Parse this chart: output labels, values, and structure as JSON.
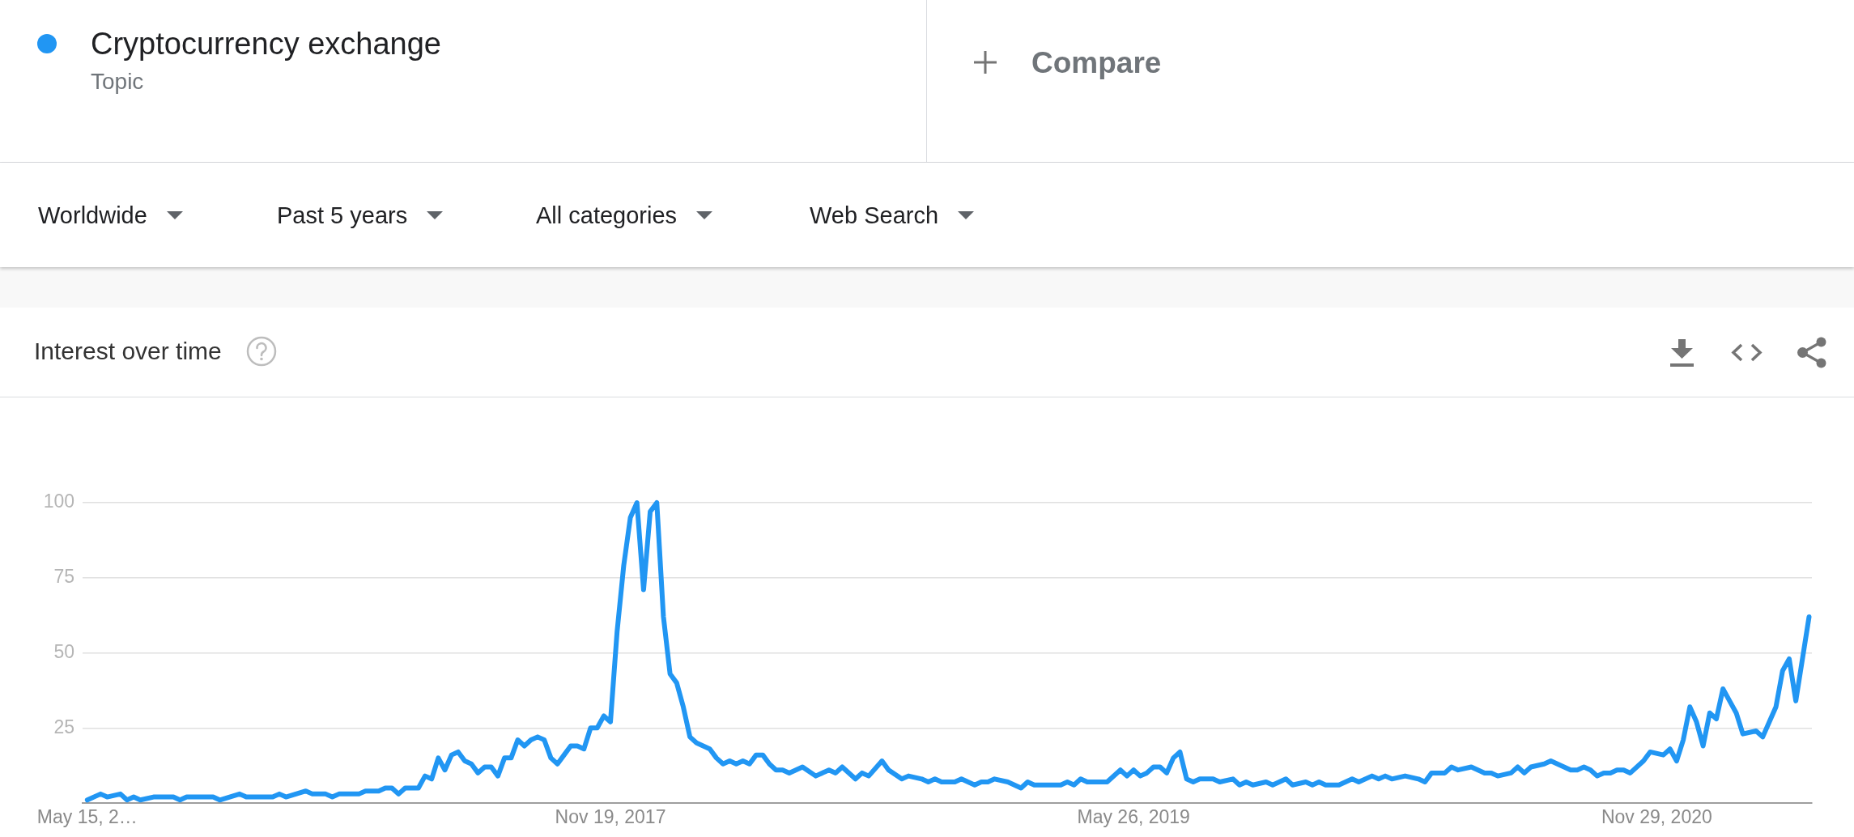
{
  "chart_data": {
    "type": "line",
    "title": "Interest over time",
    "legend": "top left",
    "annotations": [
      "Topic",
      "Compare",
      "Worldwide",
      "Past 5 years",
      "All categories",
      "Web Search"
    ],
    "xlim": [
      "2016-05-10",
      "2021-05-12"
    ],
    "xticks": [
      {
        "value": "2016-05-15",
        "label": "May 15, 2…"
      },
      {
        "value": "2017-11-19",
        "label": "Nov 19, 2017"
      },
      {
        "value": "2019-05-26",
        "label": "May 26, 2019"
      },
      {
        "value": "2020-11-29",
        "label": "Nov 29, 2020"
      }
    ],
    "ylim": [
      0,
      100
    ],
    "yticks": [
      {
        "value": 0,
        "label": null
      },
      25,
      50,
      75,
      100
    ],
    "grid": "y",
    "series": [
      {
        "name": "Cryptocurrency exchange",
        "color": "#2196f3",
        "x": [
          "2016-05-15",
          "2016-05-29",
          "2016-06-05",
          "2016-06-19",
          "2016-06-26",
          "2016-07-03",
          "2016-07-10",
          "2016-07-24",
          "2016-08-14",
          "2016-08-21",
          "2016-08-28",
          "2016-09-25",
          "2016-10-02",
          "2016-10-23",
          "2016-10-30",
          "2016-11-27",
          "2016-12-04",
          "2016-12-11",
          "2017-01-01",
          "2017-01-08",
          "2017-01-22",
          "2017-01-29",
          "2017-02-05",
          "2017-02-26",
          "2017-03-05",
          "2017-03-19",
          "2017-03-26",
          "2017-04-02",
          "2017-04-09",
          "2017-04-16",
          "2017-04-30",
          "2017-05-07",
          "2017-05-14",
          "2017-05-21",
          "2017-05-28",
          "2017-06-04",
          "2017-06-11",
          "2017-06-18",
          "2017-06-25",
          "2017-07-02",
          "2017-07-09",
          "2017-07-16",
          "2017-07-23",
          "2017-07-30",
          "2017-08-06",
          "2017-08-13",
          "2017-08-20",
          "2017-08-27",
          "2017-09-03",
          "2017-09-10",
          "2017-09-17",
          "2017-09-24",
          "2017-10-01",
          "2017-10-08",
          "2017-10-15",
          "2017-10-22",
          "2017-10-29",
          "2017-11-05",
          "2017-11-12",
          "2017-11-19",
          "2017-11-26",
          "2017-12-03",
          "2017-12-10",
          "2017-12-17",
          "2017-12-24",
          "2017-12-31",
          "2018-01-07",
          "2018-01-14",
          "2018-01-21",
          "2018-01-28",
          "2018-02-04",
          "2018-02-11",
          "2018-02-18",
          "2018-03-04",
          "2018-03-11",
          "2018-03-18",
          "2018-03-25",
          "2018-04-01",
          "2018-04-08",
          "2018-04-15",
          "2018-04-22",
          "2018-04-29",
          "2018-05-06",
          "2018-05-13",
          "2018-05-20",
          "2018-05-27",
          "2018-06-10",
          "2018-06-24",
          "2018-07-08",
          "2018-07-15",
          "2018-07-22",
          "2018-08-05",
          "2018-08-12",
          "2018-08-19",
          "2018-09-02",
          "2018-09-09",
          "2018-09-23",
          "2018-09-30",
          "2018-10-14",
          "2018-10-21",
          "2018-10-28",
          "2018-11-04",
          "2018-11-18",
          "2018-11-25",
          "2018-12-09",
          "2018-12-16",
          "2018-12-23",
          "2018-12-30",
          "2019-01-13",
          "2019-01-27",
          "2019-02-03",
          "2019-02-10",
          "2019-03-10",
          "2019-03-17",
          "2019-03-24",
          "2019-03-31",
          "2019-04-07",
          "2019-04-28",
          "2019-05-12",
          "2019-05-19",
          "2019-05-26",
          "2019-06-02",
          "2019-06-09",
          "2019-06-16",
          "2019-06-23",
          "2019-06-30",
          "2019-07-07",
          "2019-07-14",
          "2019-07-21",
          "2019-07-28",
          "2019-08-04",
          "2019-08-18",
          "2019-08-25",
          "2019-09-08",
          "2019-09-15",
          "2019-09-22",
          "2019-09-29",
          "2019-10-13",
          "2019-10-20",
          "2019-11-03",
          "2019-11-10",
          "2019-11-24",
          "2019-12-01",
          "2019-12-08",
          "2019-12-15",
          "2019-12-29",
          "2020-01-12",
          "2020-01-19",
          "2020-02-02",
          "2020-02-09",
          "2020-02-16",
          "2020-02-23",
          "2020-03-08",
          "2020-03-22",
          "2020-03-29",
          "2020-04-05",
          "2020-04-19",
          "2020-04-26",
          "2020-05-03",
          "2020-05-17",
          "2020-05-31",
          "2020-06-07",
          "2020-06-14",
          "2020-06-28",
          "2020-07-05",
          "2020-07-12",
          "2020-07-19",
          "2020-08-02",
          "2020-08-09",
          "2020-08-16",
          "2020-08-30",
          "2020-09-06",
          "2020-09-13",
          "2020-09-20",
          "2020-09-27",
          "2020-10-04",
          "2020-10-11",
          "2020-10-18",
          "2020-10-25",
          "2020-11-01",
          "2020-11-15",
          "2020-11-22",
          "2020-12-06",
          "2020-12-13",
          "2020-12-20",
          "2020-12-27",
          "2021-01-03",
          "2021-01-10",
          "2021-01-17",
          "2021-01-24",
          "2021-01-31",
          "2021-02-07",
          "2021-02-14",
          "2021-02-21",
          "2021-02-28",
          "2021-03-14",
          "2021-03-21",
          "2021-03-28",
          "2021-04-04",
          "2021-04-11",
          "2021-04-18",
          "2021-04-25",
          "2021-05-09"
        ],
        "values": [
          1,
          3,
          2,
          3,
          1,
          2,
          1,
          2,
          2,
          1,
          2,
          2,
          1,
          3,
          2,
          2,
          3,
          2,
          4,
          3,
          3,
          2,
          3,
          3,
          4,
          4,
          5,
          5,
          3,
          5,
          5,
          9,
          8,
          15,
          11,
          16,
          17,
          14,
          13,
          10,
          12,
          12,
          9,
          15,
          15,
          21,
          19,
          21,
          22,
          21,
          15,
          13,
          16,
          19,
          19,
          18,
          25,
          25,
          29,
          27,
          57,
          79,
          95,
          100,
          71,
          97,
          100,
          62,
          43,
          40,
          32,
          22,
          20,
          18,
          15,
          13,
          14,
          13,
          14,
          13,
          16,
          16,
          13,
          11,
          11,
          10,
          12,
          9,
          11,
          10,
          12,
          8,
          10,
          9,
          14,
          11,
          8,
          9,
          8,
          7,
          8,
          7,
          7,
          8,
          6,
          7,
          7,
          8,
          7,
          5,
          7,
          6,
          6,
          7,
          6,
          8,
          7,
          7,
          11,
          9,
          11,
          9,
          10,
          12,
          12,
          10,
          15,
          17,
          8,
          7,
          8,
          8,
          7,
          8,
          6,
          7,
          6,
          7,
          6,
          8,
          6,
          7,
          6,
          7,
          6,
          6,
          8,
          7,
          9,
          8,
          9,
          8,
          9,
          8,
          7,
          10,
          10,
          12,
          11,
          12,
          10,
          10,
          9,
          10,
          12,
          10,
          12,
          13,
          14,
          13,
          11,
          11,
          12,
          11,
          9,
          10,
          10,
          11,
          11,
          10,
          14,
          17,
          16,
          18,
          14,
          21,
          32,
          27,
          19,
          30,
          28,
          38,
          34,
          30,
          23,
          24,
          22,
          27,
          32,
          44,
          48,
          34,
          62
        ]
      }
    ]
  }
}
